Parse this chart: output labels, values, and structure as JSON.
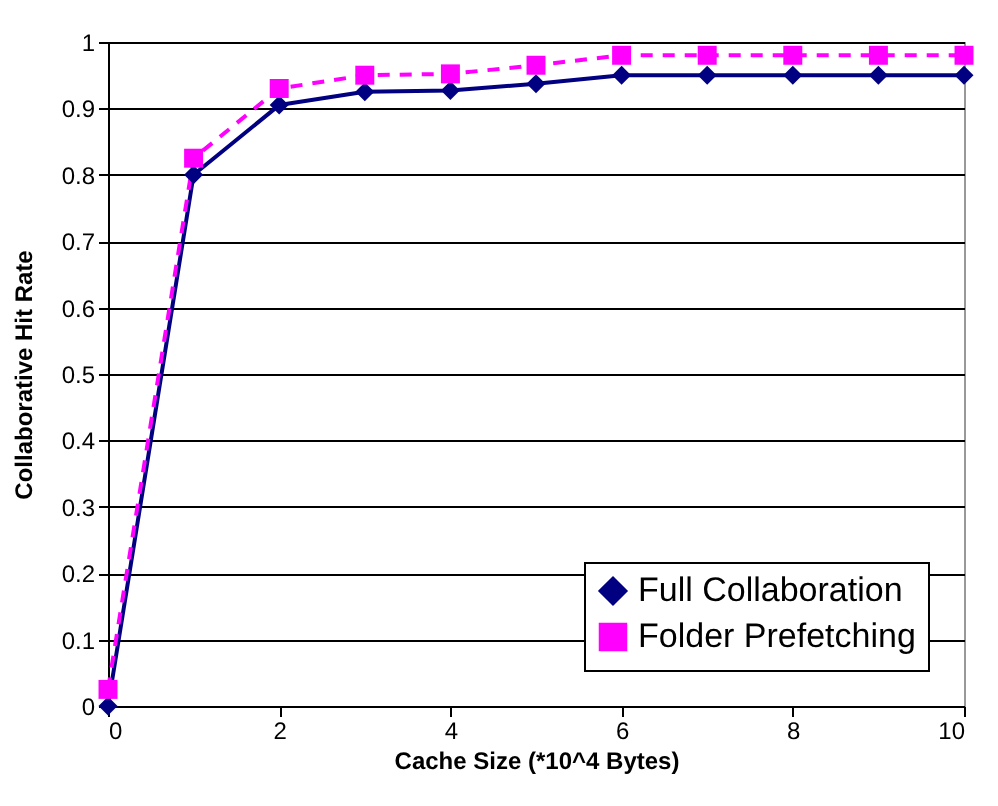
{
  "chart_data": {
    "type": "line",
    "xlabel": "Cache Size (*10^4 Bytes)",
    "ylabel": "Collaborative Hit Rate",
    "x": [
      0,
      1,
      2,
      3,
      4,
      5,
      6,
      7,
      8,
      9,
      10
    ],
    "series": [
      {
        "name": "Full Collaboration",
        "color": "#000080",
        "marker": "diamond",
        "line_style": "solid",
        "values": [
          0,
          0.8,
          0.905,
          0.925,
          0.927,
          0.937,
          0.95,
          0.95,
          0.95,
          0.95,
          0.95
        ]
      },
      {
        "name": "Folder Prefetching",
        "color": "#ff00ff",
        "marker": "square",
        "line_style": "dashed",
        "values": [
          0.025,
          0.825,
          0.93,
          0.95,
          0.952,
          0.965,
          0.98,
          0.98,
          0.98,
          0.98,
          0.98
        ]
      }
    ],
    "xlim": [
      0,
      10
    ],
    "xticks": [
      0,
      2,
      4,
      6,
      8,
      10
    ],
    "ylim": [
      0,
      1
    ],
    "yticks": [
      0,
      0.1,
      0.2,
      0.3,
      0.4,
      0.5,
      0.6,
      0.7,
      0.8,
      0.9,
      1
    ],
    "grid": "y",
    "legend": "bottom right"
  }
}
